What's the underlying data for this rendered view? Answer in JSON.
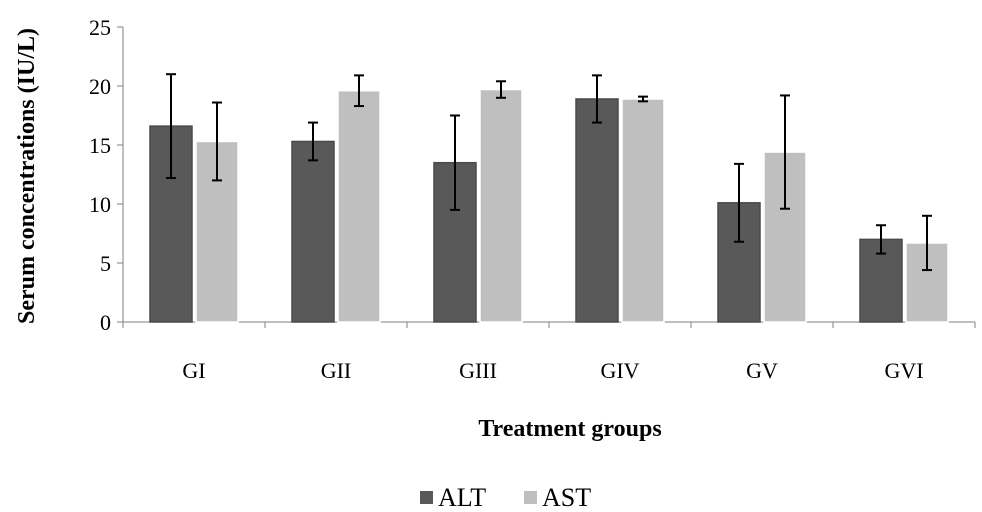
{
  "chart_data": {
    "type": "bar",
    "xlabel": "Treatment groups",
    "ylabel": "Serum concentrations (IU/L)",
    "ylim": [
      0,
      25
    ],
    "yticks": [
      0,
      5,
      10,
      15,
      20,
      25
    ],
    "categories": [
      "GI",
      "GII",
      "GIII",
      "GIV",
      "GV",
      "GVI"
    ],
    "series": [
      {
        "name": "ALT",
        "color": "#595959",
        "values": [
          16.6,
          15.3,
          13.5,
          18.9,
          10.1,
          7.0
        ],
        "errors": [
          4.4,
          1.6,
          4.0,
          2.0,
          3.3,
          1.2
        ]
      },
      {
        "name": "AST",
        "color": "#bfbfbf",
        "values": [
          15.3,
          19.6,
          19.7,
          18.9,
          14.4,
          6.7
        ],
        "errors": [
          3.3,
          1.3,
          0.7,
          0.2,
          4.8,
          2.3
        ]
      }
    ],
    "legend_position": "bottom",
    "grid": false
  }
}
